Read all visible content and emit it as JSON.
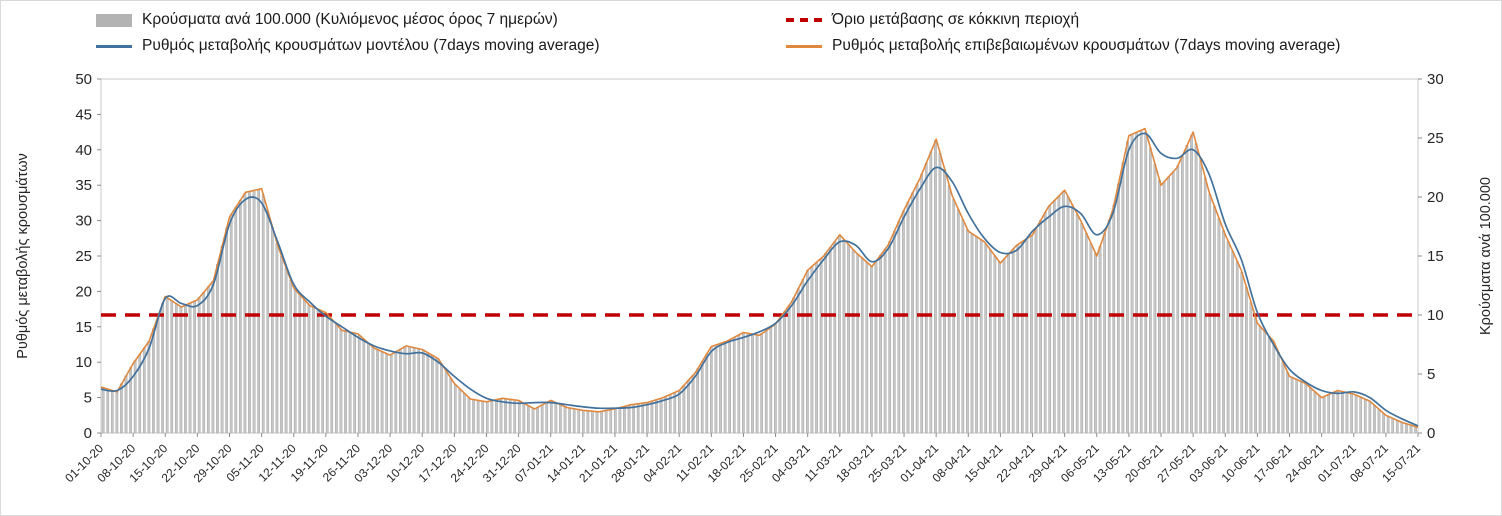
{
  "chart_data": {
    "type": "bar",
    "title": "",
    "legend_position": "top",
    "grid": false,
    "sampling_note": "values sampled twice per week: one point at each weekly x tick and one mid-week point, 01-10-20 through 15-07-21",
    "x_tick_labels": [
      "01-10-20",
      "08-10-20",
      "15-10-20",
      "22-10-20",
      "29-10-20",
      "05-11-20",
      "12-11-20",
      "19-11-20",
      "26-11-20",
      "03-12-20",
      "10-12-20",
      "17-12-20",
      "24-12-20",
      "31-12-20",
      "07-01-21",
      "14-01-21",
      "21-01-21",
      "28-01-21",
      "04-02-21",
      "11-02-21",
      "18-02-21",
      "25-02-21",
      "04-03-21",
      "11-03-21",
      "18-03-21",
      "25-03-21",
      "01-04-21",
      "08-04-21",
      "15-04-21",
      "22-04-21",
      "29-04-21",
      "06-05-21",
      "13-05-21",
      "20-05-21",
      "27-05-21",
      "03-06-21",
      "10-06-21",
      "17-06-21",
      "24-06-21",
      "01-07-21",
      "08-07-21",
      "15-07-21"
    ],
    "left_axis": {
      "label": "Ρυθμός μεταβολής κρουσμάτων",
      "min": 0,
      "max": 50,
      "tick_step": 5
    },
    "right_axis": {
      "label": "Κρούσματα ανά 100.000",
      "min": 0,
      "max": 30,
      "tick_step": 5
    },
    "threshold": {
      "label": "Όριο μετάβασης σε κόκκινη περιοχή",
      "value_right_axis": 10,
      "value_left_axis_equivalent": 16.7,
      "color": "#c00000"
    },
    "series": [
      {
        "name": "Κρούσματα ανά 100.000 (Κυλιόμενος μέσος όρος 7 ημερών)",
        "kind": "bar",
        "axis": "right",
        "color": "#c6c6c6",
        "values": [
          3.9,
          3.5,
          5.9,
          7.8,
          11.6,
          10.7,
          11.3,
          12.9,
          18.3,
          20.4,
          20.7,
          15.9,
          12.3,
          10.8,
          10.2,
          8.7,
          8.4,
          7.2,
          6.6,
          7.4,
          7.1,
          6.3,
          4.2,
          2.9,
          2.6,
          2.9,
          2.8,
          2.0,
          2.8,
          2.2,
          1.9,
          1.8,
          2.0,
          2.4,
          2.6,
          3.0,
          3.6,
          5.1,
          7.3,
          7.8,
          8.5,
          8.3,
          9.2,
          11.1,
          13.8,
          15.0,
          16.8,
          15.3,
          14.1,
          15.9,
          18.9,
          21.6,
          24.9,
          20.1,
          17.1,
          16.2,
          14.4,
          15.9,
          16.8,
          19.2,
          20.6,
          18.0,
          15.0,
          18.9,
          25.2,
          25.8,
          21.0,
          22.5,
          25.5,
          20.4,
          16.8,
          13.8,
          9.3,
          7.8,
          4.8,
          4.2,
          3.0,
          3.6,
          3.3,
          2.7,
          1.5,
          0.9,
          0.5
        ]
      },
      {
        "name": "Ρυθμός μεταβολής κρουσμάτων μοντέλου (7days moving average)",
        "kind": "line",
        "smooth": true,
        "axis": "left",
        "color": "#41719c",
        "values": [
          6.2,
          6.0,
          8.0,
          12.0,
          19.0,
          18.3,
          18.0,
          21.0,
          29.5,
          33.0,
          32.5,
          27.0,
          21.0,
          18.5,
          16.5,
          15.0,
          13.5,
          12.3,
          11.6,
          11.2,
          11.3,
          10.0,
          8.0,
          6.2,
          4.9,
          4.4,
          4.2,
          4.3,
          4.3,
          4.0,
          3.7,
          3.5,
          3.5,
          3.6,
          4.0,
          4.6,
          5.5,
          8.0,
          11.5,
          12.8,
          13.5,
          14.3,
          15.5,
          18.0,
          21.5,
          24.5,
          27.0,
          26.5,
          24.2,
          26.0,
          30.5,
          34.5,
          37.5,
          35.5,
          31.0,
          27.5,
          25.5,
          25.8,
          28.5,
          30.5,
          32.0,
          31.0,
          28.0,
          31.0,
          40.0,
          42.3,
          39.5,
          38.8,
          40.0,
          36.5,
          29.5,
          24.5,
          17.0,
          12.5,
          9.0,
          7.2,
          6.0,
          5.6,
          5.8,
          5.0,
          3.2,
          2.0,
          1.0
        ]
      },
      {
        "name": "Ρυθμός μεταβολής επιβεβαιωμένων κρουσμάτων (7days moving average)",
        "kind": "line",
        "smooth": false,
        "axis": "left",
        "color": "#e0883e",
        "values": [
          6.5,
          5.8,
          9.8,
          13.0,
          19.3,
          17.8,
          18.8,
          21.5,
          30.5,
          34.0,
          34.5,
          26.5,
          20.5,
          18.0,
          17.0,
          14.5,
          14.0,
          12.0,
          11.0,
          12.3,
          11.8,
          10.5,
          7.0,
          4.8,
          4.4,
          4.9,
          4.6,
          3.4,
          4.6,
          3.6,
          3.2,
          3.0,
          3.4,
          4.0,
          4.3,
          5.0,
          6.0,
          8.5,
          12.2,
          13.0,
          14.2,
          13.8,
          15.4,
          18.5,
          23.0,
          25.0,
          28.0,
          25.5,
          23.5,
          26.5,
          31.5,
          36.0,
          41.5,
          33.5,
          28.5,
          27.0,
          24.0,
          26.5,
          28.0,
          32.0,
          34.3,
          30.0,
          25.0,
          31.5,
          42.0,
          43.0,
          35.0,
          37.5,
          42.5,
          34.0,
          28.0,
          23.0,
          15.5,
          13.0,
          8.0,
          7.0,
          5.0,
          6.0,
          5.5,
          4.5,
          2.5,
          1.5,
          0.8
        ]
      }
    ]
  }
}
